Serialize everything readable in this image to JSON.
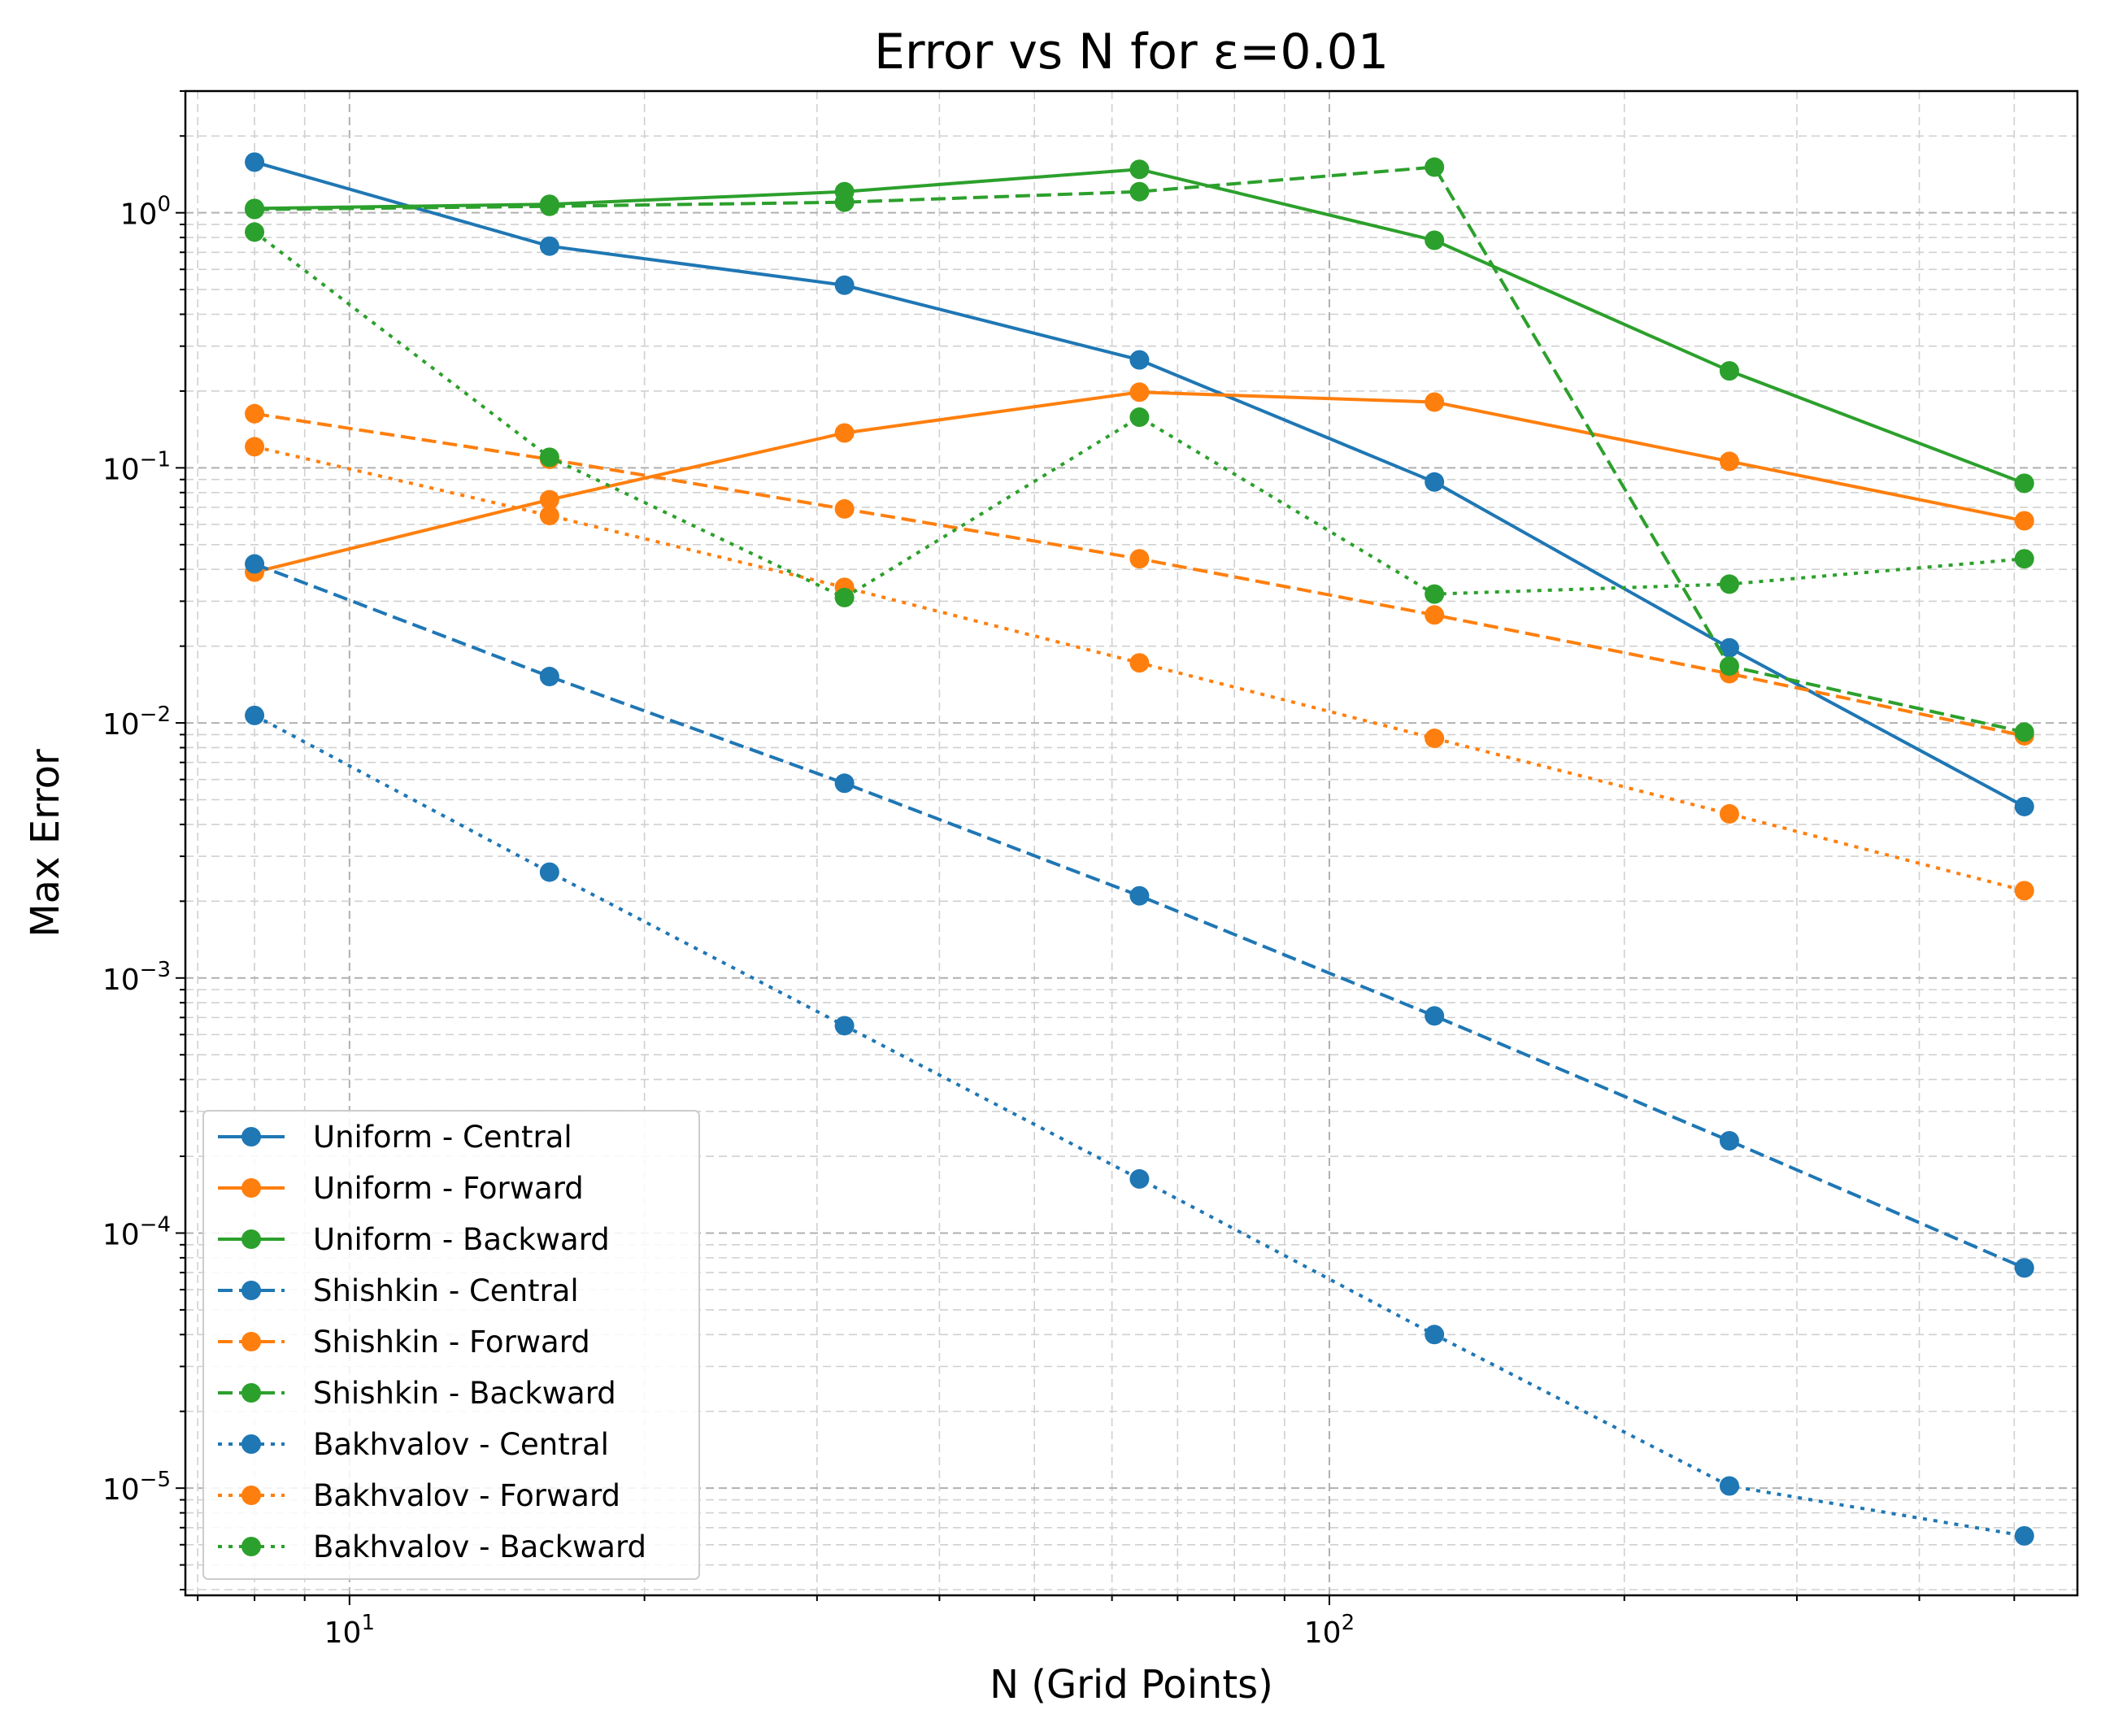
{
  "chart_data": {
    "type": "line",
    "title": "Error vs N for ε=0.01",
    "xlabel": "N (Grid Points)",
    "ylabel": "Max Error",
    "xscale": "log",
    "yscale": "log",
    "xlim": [
      6.8,
      580
    ],
    "ylim": [
      3.8e-06,
      3.0
    ],
    "grid": "both (major and minor, dashed)",
    "legend_position": "lower-left",
    "x": [
      8,
      16,
      32,
      64,
      128,
      256,
      512
    ],
    "x_ticks": [
      {
        "value": 10,
        "base": "10",
        "exp": "1"
      },
      {
        "value": 100,
        "base": "10",
        "exp": "2"
      }
    ],
    "y_ticks": [
      {
        "value": 1e-05,
        "base": "10",
        "exp": "−5"
      },
      {
        "value": 0.0001,
        "base": "10",
        "exp": "−4"
      },
      {
        "value": 0.001,
        "base": "10",
        "exp": "−3"
      },
      {
        "value": 0.01,
        "base": "10",
        "exp": "−2"
      },
      {
        "value": 0.1,
        "base": "10",
        "exp": "−1"
      },
      {
        "value": 1,
        "base": "10",
        "exp": "0"
      }
    ],
    "series": [
      {
        "name": "Uniform - Central",
        "color": "#1f77b4",
        "style": "solid",
        "values": [
          1.58,
          0.74,
          0.52,
          0.265,
          0.088,
          0.0197,
          0.0047
        ]
      },
      {
        "name": "Uniform - Forward",
        "color": "#ff7f0e",
        "style": "solid",
        "values": [
          0.039,
          0.075,
          0.137,
          0.198,
          0.181,
          0.106,
          0.062
        ]
      },
      {
        "name": "Uniform - Backward",
        "color": "#2ca02c",
        "style": "solid",
        "values": [
          1.04,
          1.08,
          1.21,
          1.48,
          0.78,
          0.24,
          0.087
        ]
      },
      {
        "name": "Shishkin - Central",
        "color": "#1f77b4",
        "style": "dashed",
        "values": [
          0.042,
          0.0152,
          0.0058,
          0.0021,
          0.00071,
          0.00023,
          7.3e-05
        ]
      },
      {
        "name": "Shishkin - Forward",
        "color": "#ff7f0e",
        "style": "dashed",
        "values": [
          0.163,
          0.108,
          0.069,
          0.044,
          0.0265,
          0.0156,
          0.0089
        ]
      },
      {
        "name": "Shishkin - Backward",
        "color": "#2ca02c",
        "style": "dashed",
        "values": [
          1.03,
          1.06,
          1.1,
          1.21,
          1.51,
          0.0167,
          0.0092
        ]
      },
      {
        "name": "Bakhvalov - Central",
        "color": "#1f77b4",
        "style": "dotted",
        "values": [
          0.0107,
          0.0026,
          0.00065,
          0.000163,
          4e-05,
          1.02e-05,
          6.5e-06
        ]
      },
      {
        "name": "Bakhvalov - Forward",
        "color": "#ff7f0e",
        "style": "dotted",
        "values": [
          0.121,
          0.065,
          0.034,
          0.0172,
          0.0087,
          0.0044,
          0.0022
        ]
      },
      {
        "name": "Bakhvalov - Backward",
        "color": "#2ca02c",
        "style": "dotted",
        "values": [
          0.84,
          0.11,
          0.031,
          0.158,
          0.032,
          0.035,
          0.044
        ]
      }
    ]
  }
}
